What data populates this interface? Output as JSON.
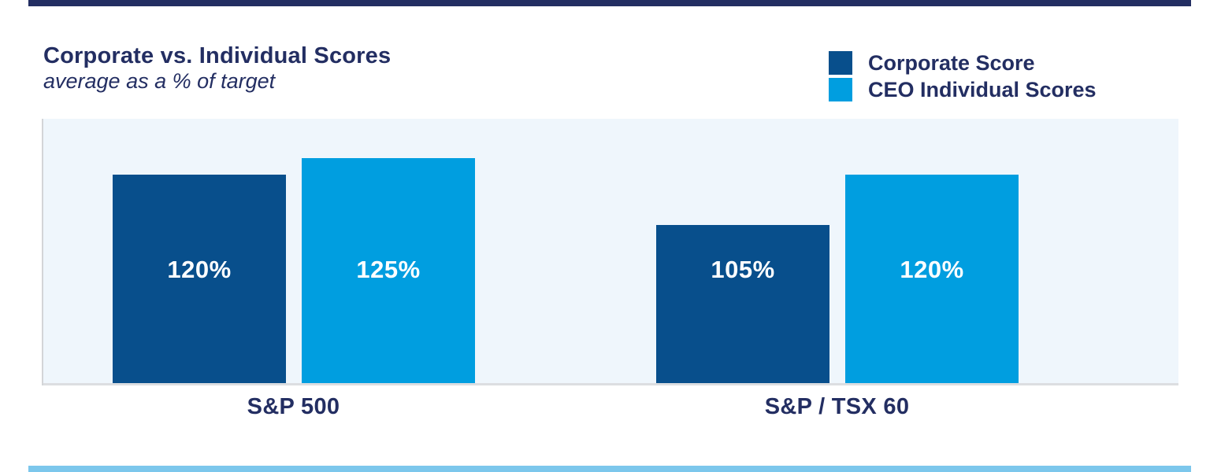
{
  "page": {
    "background": "#ffffff",
    "top_accent_color": "#232e62",
    "bottom_accent_color": "#7cc7ec"
  },
  "header": {
    "title": "Corporate vs. Individual Scores",
    "subtitle": "average as a % of target"
  },
  "legend": {
    "position": "top-right",
    "items": [
      {
        "label": "Corporate Score",
        "color": "#084f8c"
      },
      {
        "label": "CEO Individual Scores",
        "color": "#009ee0"
      }
    ]
  },
  "colors": {
    "corporate_blue": "#084f8c",
    "ceo_light_blue": "#009ee0",
    "plot_background": "#eff6fc",
    "axis_line_gray": "#dcdee1",
    "y_axis_line_gray": "#d3d5d8",
    "text_navy": "#232e62",
    "bar_label_white": "#ffffff"
  },
  "chart_data": {
    "type": "bar",
    "title": "Corporate vs. Individual Scores",
    "subtitle": "average as a % of target",
    "value_unit": "%",
    "categories": [
      "S&P 500",
      "S&P / TSX 60"
    ],
    "series": [
      {
        "name": "Corporate Score",
        "color": "#084f8c",
        "values": [
          120,
          105
        ],
        "labels": [
          "120%",
          "105%"
        ]
      },
      {
        "name": "CEO Individual Scores",
        "color": "#009ee0",
        "values": [
          125,
          120
        ],
        "labels": [
          "125%",
          "120%"
        ]
      }
    ],
    "bar_labels_inside": true,
    "grid": false,
    "legend_position": "top-right",
    "value_axis_hidden": true,
    "ylim": [
      58,
      136.7
    ]
  }
}
